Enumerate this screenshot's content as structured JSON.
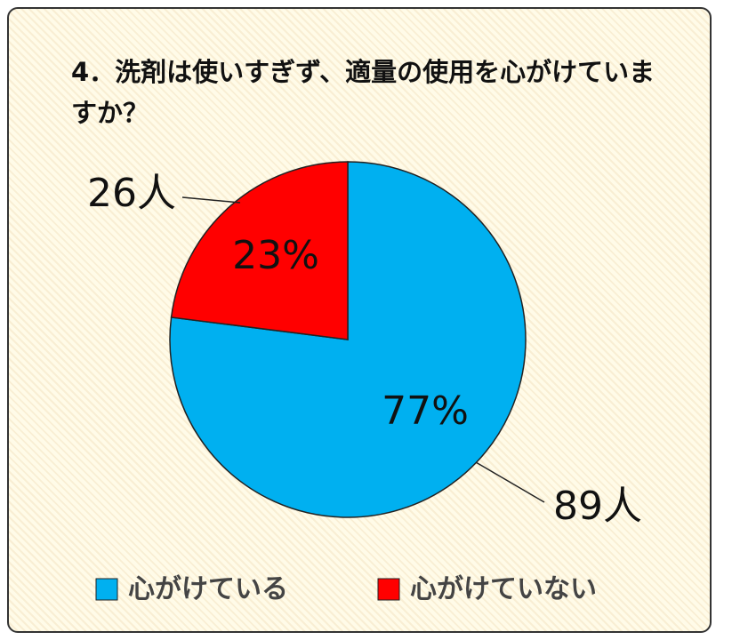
{
  "chart_data": {
    "type": "pie",
    "title": "4．洗剤は使いすぎず、適量の使用を心がけていますか？",
    "categories": [
      "心がけている",
      "心がけていない"
    ],
    "values": [
      77,
      23
    ],
    "value_labels": [
      "77%",
      "23%"
    ],
    "counts": [
      89,
      26
    ],
    "count_labels": [
      "89人",
      "26人"
    ],
    "colors": [
      "#00b0f0",
      "#ff0000"
    ]
  }
}
